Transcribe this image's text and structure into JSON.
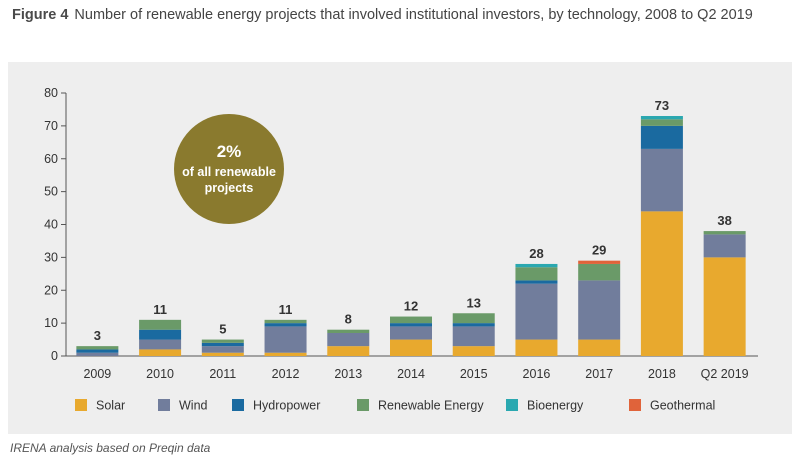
{
  "figure": {
    "label": "Figure 4",
    "title": "Number of renewable energy projects that involved institutional investors, by technology, 2008 to Q2 2019"
  },
  "source": "IRENA analysis based on Preqin data",
  "badge": {
    "value": "2%",
    "line1": "of all renewable",
    "line2": "projects",
    "color": "#8a7a2e"
  },
  "chart_data": {
    "type": "bar",
    "stacked": true,
    "categories": [
      "2009",
      "2010",
      "2011",
      "2012",
      "2013",
      "2014",
      "2015",
      "2016",
      "2017",
      "2018",
      "Q2 2019"
    ],
    "series": [
      {
        "name": "Solar",
        "color": "#e8a92e",
        "values": [
          0,
          2,
          1,
          1,
          3,
          5,
          3,
          5,
          5,
          44,
          30
        ]
      },
      {
        "name": "Wind",
        "color": "#717d9c",
        "values": [
          1,
          3,
          2,
          8,
          4,
          4,
          6,
          17,
          18,
          19,
          7
        ]
      },
      {
        "name": "Hydropower",
        "color": "#1a6aa0",
        "values": [
          1,
          3,
          1,
          1,
          0,
          1,
          1,
          1,
          0,
          7,
          0
        ]
      },
      {
        "name": "Renewable Energy",
        "color": "#6a9a68",
        "values": [
          1,
          3,
          1,
          1,
          1,
          2,
          3,
          4,
          5,
          2,
          1
        ]
      },
      {
        "name": "Bioenergy",
        "color": "#2aa8b0",
        "values": [
          0,
          0,
          0,
          0,
          0,
          0,
          0,
          1,
          0,
          1,
          0
        ]
      },
      {
        "name": "Geothermal",
        "color": "#e0633a",
        "values": [
          0,
          0,
          0,
          0,
          0,
          0,
          0,
          0,
          1,
          0,
          0
        ]
      }
    ],
    "totals": [
      3,
      11,
      5,
      11,
      8,
      12,
      13,
      28,
      29,
      73,
      38
    ],
    "yticks": [
      0,
      10,
      20,
      30,
      40,
      50,
      60,
      70,
      80
    ],
    "ylim": [
      0,
      80
    ],
    "grid": false,
    "legend_position": "bottom"
  }
}
